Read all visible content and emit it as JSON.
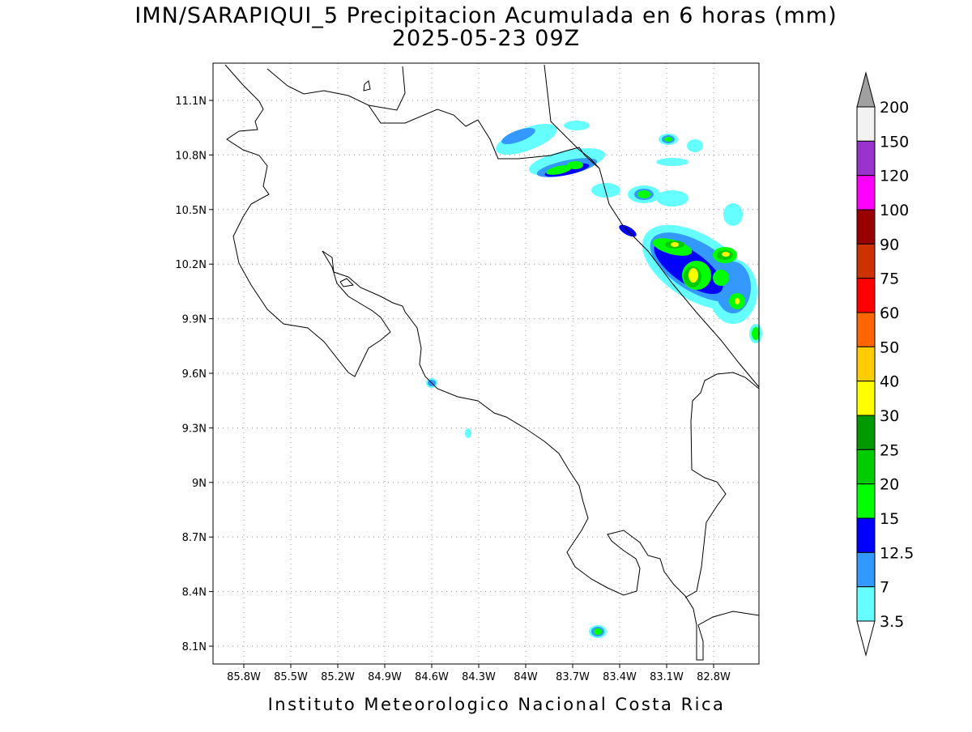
{
  "header": {
    "title": "IMN/SARAPIQUI_5 Precipitacion Acumulada en 6 horas (mm)",
    "subtitle": "2025-05-23 09Z"
  },
  "map": {
    "lon_ticks": [
      "85.8W",
      "85.5W",
      "85.2W",
      "84.9W",
      "84.6W",
      "84.3W",
      "84W",
      "83.7W",
      "83.4W",
      "83.1W",
      "82.8W"
    ],
    "lat_ticks": [
      "11.1N",
      "10.8N",
      "10.5N",
      "10.2N",
      "9.9N",
      "9.6N",
      "9.3N",
      "9N",
      "8.7N",
      "8.4N",
      "8.1N"
    ],
    "grid": true
  },
  "colorbar": {
    "labels": [
      "200",
      "150",
      "120",
      "100",
      "90",
      "75",
      "60",
      "50",
      "40",
      "30",
      "25",
      "20",
      "15",
      "12.5",
      "7",
      "3.5"
    ],
    "colors": [
      "#f2f2f2",
      "#9933cc",
      "#ff00ff",
      "#990000",
      "#cc3300",
      "#ff0000",
      "#ff6600",
      "#ffcc00",
      "#ffff00",
      "#009900",
      "#00cc00",
      "#00ff00",
      "#0000ff",
      "#3399ff",
      "#66ffff"
    ],
    "over_color": "#a0a0a0",
    "under_color": "#ffffff"
  },
  "footer": "Instituto Meteorologico Nacional Costa Rica"
}
